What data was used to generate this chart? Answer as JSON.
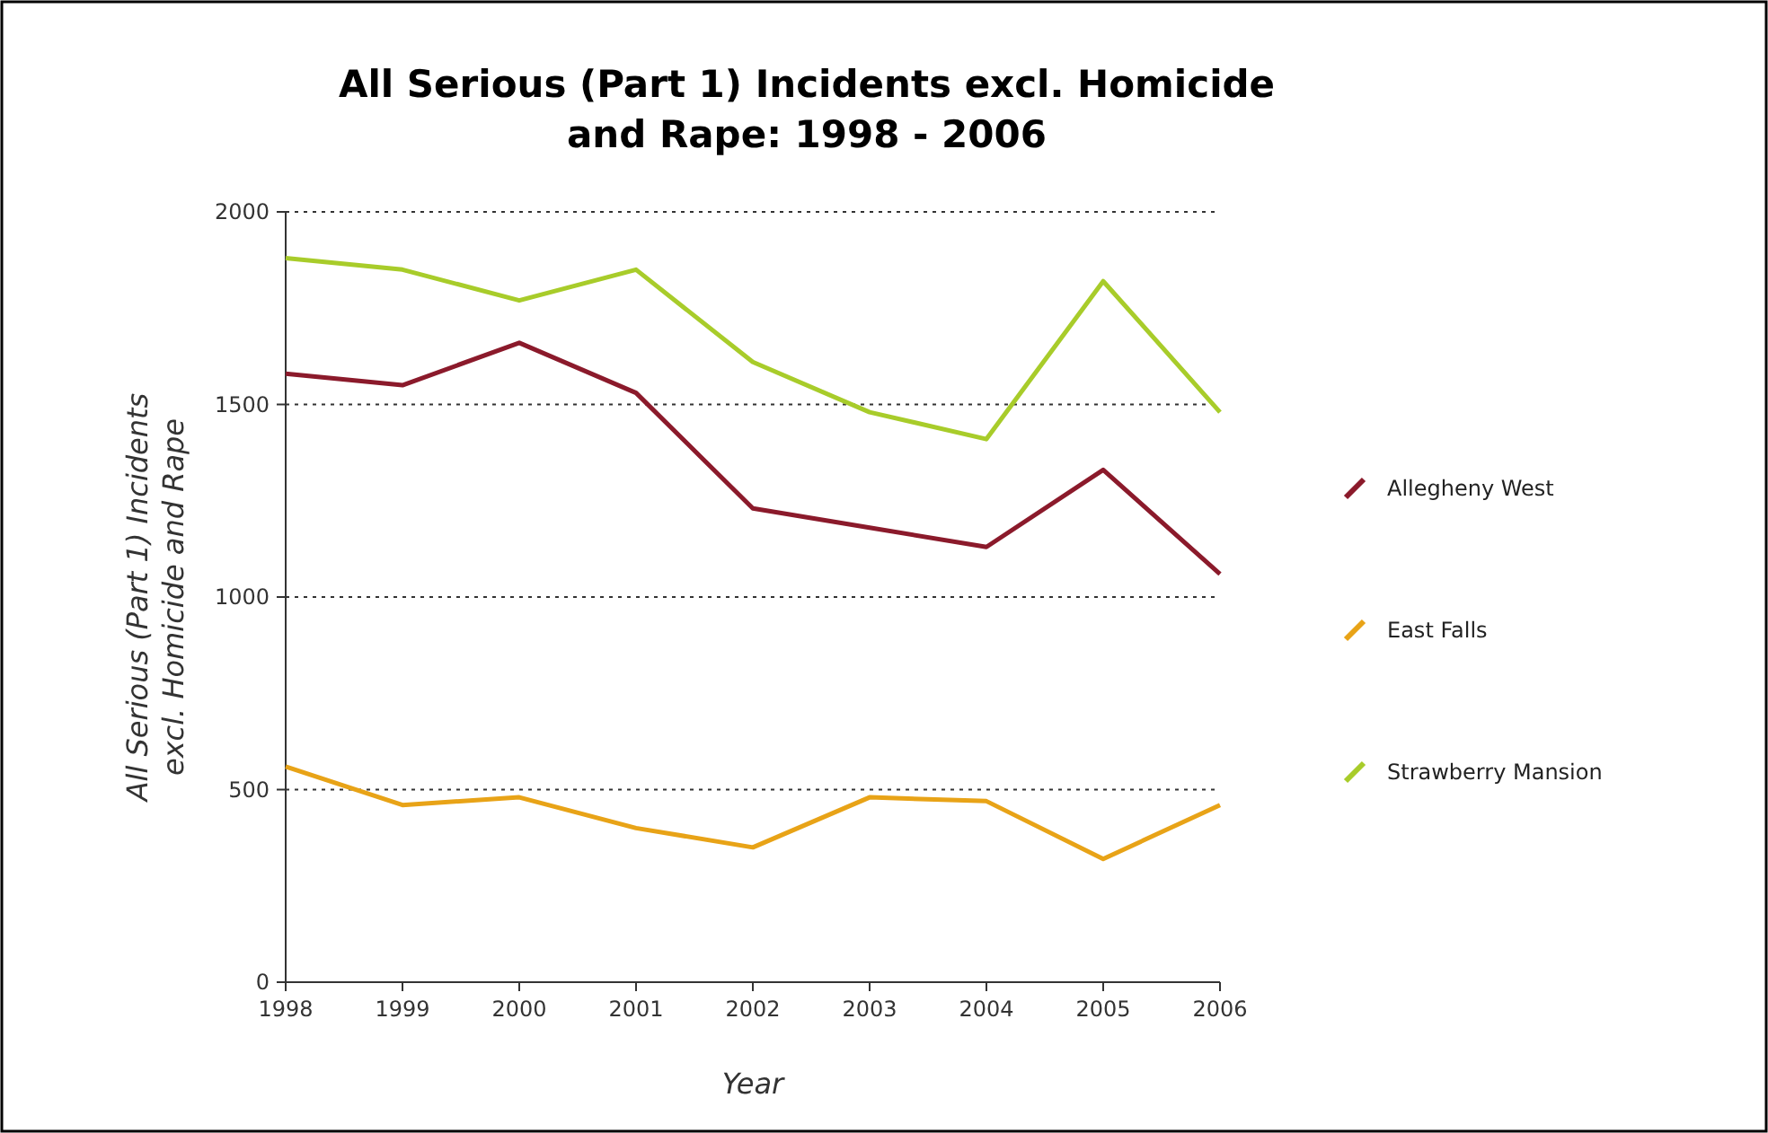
{
  "chart_data": {
    "type": "line",
    "title": "All Serious (Part 1) Incidents excl. Homicide and Rape: 1998 - 2006",
    "xlabel": "Year",
    "ylabel": "All Serious (Part 1) Incidents excl. Homicide and Rape",
    "x": [
      1998,
      1999,
      2000,
      2001,
      2002,
      2003,
      2004,
      2005,
      2006
    ],
    "series": [
      {
        "name": "Allegheny West",
        "color": "#8b1a2b",
        "values": [
          1580,
          1550,
          1660,
          1530,
          1230,
          1180,
          1130,
          1330,
          1060
        ]
      },
      {
        "name": "East Falls",
        "color": "#e8a317",
        "values": [
          560,
          460,
          480,
          400,
          350,
          480,
          470,
          320,
          460
        ]
      },
      {
        "name": "Strawberry Mansion",
        "color": "#a8cc2a",
        "values": [
          1880,
          1850,
          1770,
          1850,
          1610,
          1480,
          1410,
          1820,
          1480
        ]
      }
    ],
    "xlim": [
      1998,
      2006
    ],
    "xticks": [
      1998,
      1999,
      2000,
      2001,
      2002,
      2003,
      2004,
      2005,
      2006
    ],
    "ylim": [
      0,
      2000
    ],
    "yticks": [
      0,
      500,
      1000,
      1500,
      2000
    ],
    "grid": "y",
    "legend": "right",
    "marker": "none",
    "line_style": "solid"
  }
}
